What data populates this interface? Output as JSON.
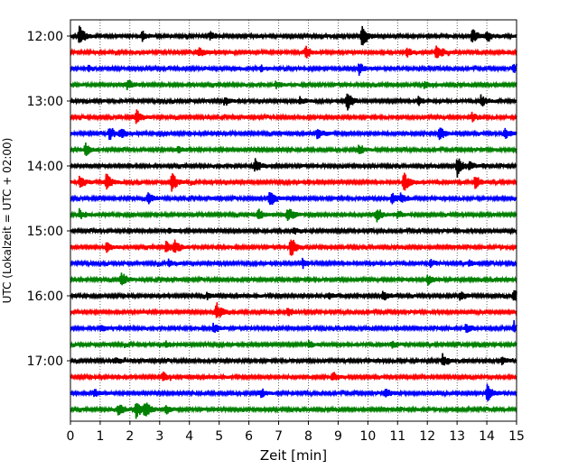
{
  "chart_data": {
    "type": "line",
    "xlabel": "Zeit  [min]",
    "ylabel": "UTC (Lokalzeit = UTC + 02:00)",
    "xlim": [
      0,
      15
    ],
    "x_ticks": [
      0,
      1,
      2,
      3,
      4,
      5,
      6,
      7,
      8,
      9,
      10,
      11,
      12,
      13,
      14,
      15
    ],
    "y_tick_labels": [
      "12:00",
      "13:00",
      "14:00",
      "15:00",
      "16:00",
      "17:00"
    ],
    "grid": "vertical dotted at each minute",
    "trace_colors": [
      "#000000",
      "#ff0000",
      "#0000ff",
      "#008000"
    ],
    "traces": [
      {
        "start": "12:00",
        "events": [
          [
            0.3,
            1.0
          ],
          [
            2.4,
            0.45
          ],
          [
            4.7,
            0.35
          ],
          [
            9.8,
            1.0
          ],
          [
            13.5,
            0.7
          ],
          [
            14.0,
            0.5
          ]
        ]
      },
      {
        "start": "12:15",
        "events": [
          [
            4.3,
            0.5
          ],
          [
            7.9,
            0.6
          ],
          [
            11.3,
            0.45
          ],
          [
            12.3,
            0.9
          ]
        ]
      },
      {
        "start": "12:30",
        "events": [
          [
            0.6,
            0.25
          ],
          [
            6.4,
            0.25
          ],
          [
            9.7,
            0.55
          ],
          [
            14.9,
            0.5
          ]
        ]
      },
      {
        "start": "12:45",
        "events": [
          [
            1.9,
            0.5
          ],
          [
            6.9,
            0.3
          ],
          [
            11.9,
            0.3
          ]
        ]
      },
      {
        "start": "13:00",
        "events": [
          [
            5.2,
            0.3
          ],
          [
            7.7,
            0.35
          ],
          [
            9.3,
            0.9
          ],
          [
            11.7,
            0.4
          ],
          [
            13.8,
            0.5
          ]
        ]
      },
      {
        "start": "13:15",
        "events": [
          [
            2.2,
            0.7
          ],
          [
            13.5,
            0.35
          ]
        ]
      },
      {
        "start": "13:30",
        "events": [
          [
            1.3,
            0.6
          ],
          [
            1.7,
            0.45
          ],
          [
            8.3,
            0.45
          ],
          [
            12.4,
            0.7
          ],
          [
            14.6,
            0.5
          ]
        ]
      },
      {
        "start": "13:45",
        "events": [
          [
            0.5,
            0.6
          ],
          [
            3.6,
            0.3
          ],
          [
            9.7,
            0.45
          ]
        ]
      },
      {
        "start": "14:00",
        "events": [
          [
            6.2,
            0.6
          ],
          [
            13.0,
            0.9
          ],
          [
            13.4,
            0.4
          ]
        ]
      },
      {
        "start": "14:15",
        "events": [
          [
            0.3,
            0.6
          ],
          [
            1.2,
            0.8
          ],
          [
            3.4,
            0.9
          ],
          [
            11.2,
            0.9
          ],
          [
            13.6,
            0.6
          ]
        ]
      },
      {
        "start": "14:30",
        "events": [
          [
            2.6,
            0.6
          ],
          [
            6.7,
            0.8
          ],
          [
            10.8,
            0.5
          ],
          [
            11.1,
            0.4
          ]
        ]
      },
      {
        "start": "14:45",
        "events": [
          [
            0.3,
            0.4
          ],
          [
            6.3,
            0.5
          ],
          [
            7.3,
            0.7
          ],
          [
            10.3,
            0.6
          ],
          [
            11.0,
            0.35
          ]
        ]
      },
      {
        "start": "15:00",
        "events": [
          [
            3.3,
            0.2
          ],
          [
            7.5,
            0.3
          ]
        ]
      },
      {
        "start": "15:15",
        "events": [
          [
            1.2,
            0.5
          ],
          [
            3.2,
            0.6
          ],
          [
            3.5,
            0.55
          ],
          [
            7.4,
            1.0
          ]
        ]
      },
      {
        "start": "15:30",
        "events": [
          [
            3.3,
            0.3
          ],
          [
            7.8,
            0.4
          ],
          [
            12.1,
            0.3
          ],
          [
            13.4,
            0.25
          ]
        ]
      },
      {
        "start": "15:45",
        "events": [
          [
            1.7,
            0.7
          ],
          [
            12.0,
            0.45
          ]
        ]
      },
      {
        "start": "16:00",
        "events": [
          [
            4.6,
            0.3
          ],
          [
            8.7,
            0.35
          ],
          [
            10.5,
            0.5
          ],
          [
            13.1,
            0.4
          ],
          [
            14.9,
            0.55
          ]
        ]
      },
      {
        "start": "16:15",
        "events": [
          [
            4.9,
            0.9
          ],
          [
            7.3,
            0.4
          ]
        ]
      },
      {
        "start": "16:30",
        "events": [
          [
            1.0,
            0.4
          ],
          [
            4.8,
            0.45
          ],
          [
            13.3,
            0.4
          ],
          [
            14.9,
            0.5
          ]
        ]
      },
      {
        "start": "16:45",
        "events": [
          [
            3.2,
            0.3
          ],
          [
            8.0,
            0.35
          ],
          [
            10.8,
            0.3
          ]
        ]
      },
      {
        "start": "17:00",
        "events": [
          [
            1.5,
            0.3
          ],
          [
            12.5,
            0.55
          ],
          [
            14.5,
            0.3
          ]
        ]
      },
      {
        "start": "17:15",
        "events": [
          [
            3.1,
            0.45
          ],
          [
            8.8,
            0.45
          ]
        ]
      },
      {
        "start": "17:30",
        "events": [
          [
            0.8,
            0.3
          ],
          [
            6.4,
            0.4
          ],
          [
            10.6,
            0.4
          ],
          [
            14.0,
            0.9
          ]
        ]
      },
      {
        "start": "17:45",
        "events": [
          [
            1.6,
            0.55
          ],
          [
            2.2,
            0.9
          ],
          [
            2.5,
            0.75
          ],
          [
            3.2,
            0.35
          ]
        ]
      }
    ]
  }
}
